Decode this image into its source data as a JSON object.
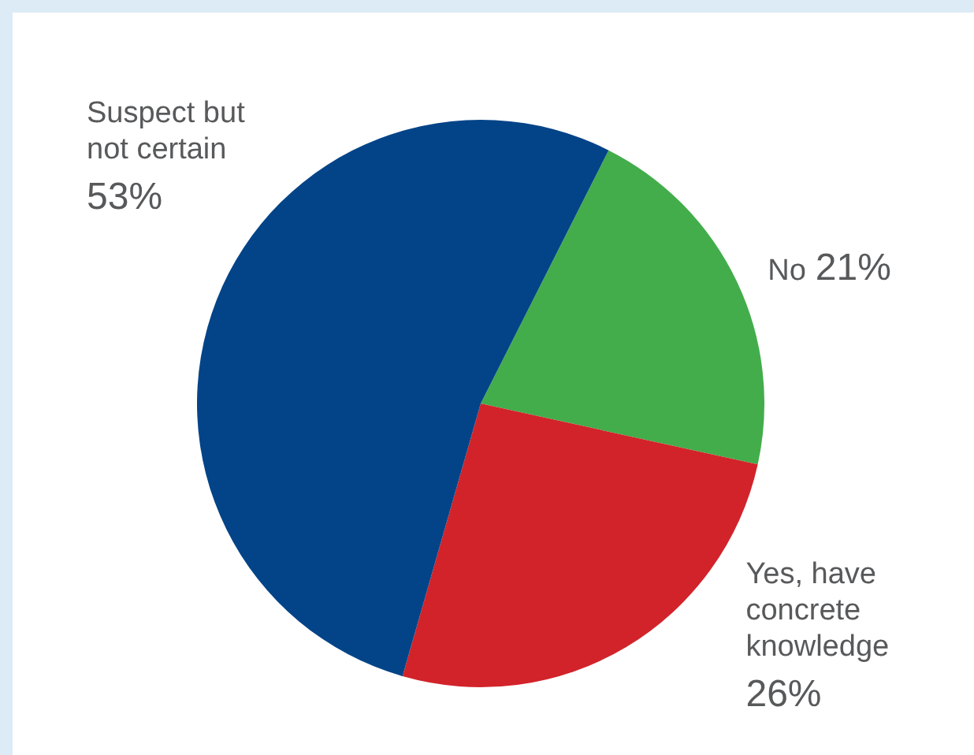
{
  "chart_data": {
    "type": "pie",
    "categories": [
      "No",
      "Yes, have concrete knowledge",
      "Suspect but not certain"
    ],
    "values": [
      21,
      26,
      53
    ],
    "value_labels": [
      "21%",
      "26%",
      "53%"
    ],
    "colors": [
      "#43ad4b",
      "#d2232a",
      "#034488"
    ],
    "legend": false
  }
}
